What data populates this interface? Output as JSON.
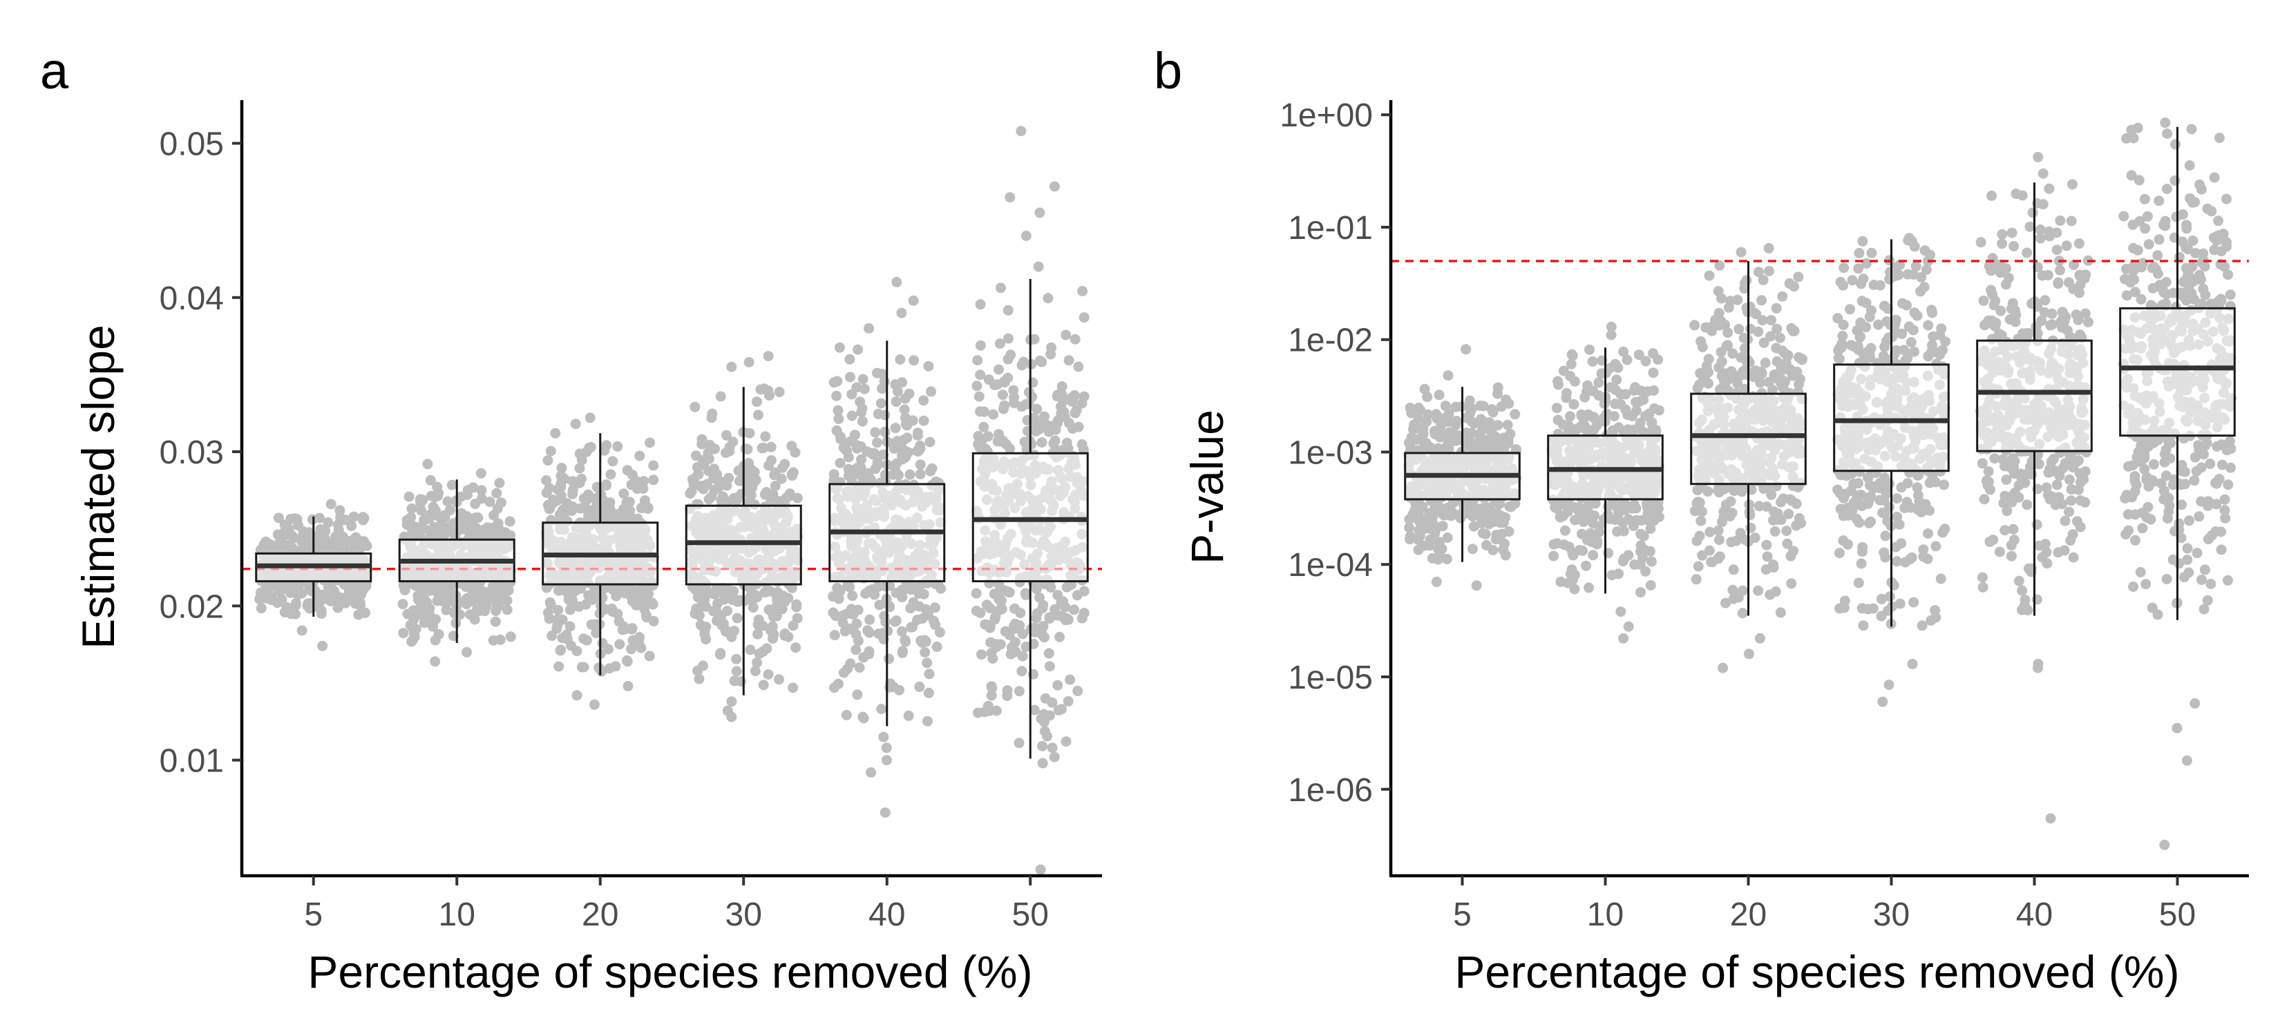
{
  "chart_data": [
    {
      "panel_label": "a",
      "type": "box",
      "categories": [
        "5",
        "10",
        "20",
        "30",
        "40",
        "50"
      ],
      "xlabel": "Percentage of species removed (%)",
      "ylabel": "Estimated slope",
      "yscale": "linear",
      "ylim": [
        0.0025,
        0.0528
      ],
      "yticks": [
        0.01,
        0.02,
        0.03,
        0.04,
        0.05
      ],
      "ytick_labels": [
        "0.01",
        "0.02",
        "0.03",
        "0.04",
        "0.05"
      ],
      "reference_line": 0.0224,
      "boxes": [
        {
          "q1": 0.0216,
          "median": 0.0226,
          "q3": 0.0234,
          "whisker_low": 0.0193,
          "whisker_high": 0.0258
        },
        {
          "q1": 0.0216,
          "median": 0.0229,
          "q3": 0.0243,
          "whisker_low": 0.0176,
          "whisker_high": 0.0282
        },
        {
          "q1": 0.0214,
          "median": 0.0233,
          "q3": 0.0254,
          "whisker_low": 0.0155,
          "whisker_high": 0.0312
        },
        {
          "q1": 0.0214,
          "median": 0.0241,
          "q3": 0.0265,
          "whisker_low": 0.0142,
          "whisker_high": 0.0342
        },
        {
          "q1": 0.0216,
          "median": 0.0248,
          "q3": 0.0279,
          "whisker_low": 0.0122,
          "whisker_high": 0.0372
        },
        {
          "q1": 0.0216,
          "median": 0.0256,
          "q3": 0.0299,
          "whisker_low": 0.0101,
          "whisker_high": 0.0412
        }
      ],
      "outliers": [
        [
          0.0174,
          0.0184,
          0.0266,
          0.0262
        ],
        [
          0.0164,
          0.017,
          0.0292,
          0.0286
        ],
        [
          0.0136,
          0.0142,
          0.0148,
          0.0322,
          0.0318
        ],
        [
          0.0128,
          0.0132,
          0.0138,
          0.0355,
          0.0362,
          0.0358
        ],
        [
          0.0066,
          0.0092,
          0.01,
          0.0108,
          0.0115,
          0.038,
          0.039,
          0.0398,
          0.041
        ],
        [
          0.0029,
          0.0098,
          0.0102,
          0.0108,
          0.042,
          0.044,
          0.0455,
          0.0465,
          0.0472,
          0.0508
        ]
      ],
      "point_color": "#bdbdbd",
      "reference_line_color": "#e31a1c"
    },
    {
      "panel_label": "b",
      "type": "box",
      "categories": [
        "5",
        "10",
        "20",
        "30",
        "40",
        "50"
      ],
      "xlabel": "Percentage of species removed (%)",
      "ylabel": "P-value",
      "yscale": "log10",
      "ylim": [
        1.7e-07,
        1.35
      ],
      "yticks": [
        1e-06,
        1e-05,
        0.0001,
        0.001,
        0.01,
        0.1,
        1
      ],
      "ytick_labels": [
        "1e-06",
        "1e-05",
        "1e-04",
        "1e-03",
        "1e-02",
        "1e-01",
        "1e+00"
      ],
      "reference_line": 0.05,
      "boxes": [
        {
          "q1": 0.00038,
          "median": 0.00062,
          "q3": 0.00098,
          "whisker_low": 0.000105,
          "whisker_high": 0.0038
        },
        {
          "q1": 0.00038,
          "median": 0.0007,
          "q3": 0.0014,
          "whisker_low": 5.5e-05,
          "whisker_high": 0.0085
        },
        {
          "q1": 0.00052,
          "median": 0.0014,
          "q3": 0.0033,
          "whisker_low": 3.5e-05,
          "whisker_high": 0.05
        },
        {
          "q1": 0.00068,
          "median": 0.0019,
          "q3": 0.006,
          "whisker_low": 2.8e-05,
          "whisker_high": 0.078
        },
        {
          "q1": 0.00102,
          "median": 0.0034,
          "q3": 0.0098,
          "whisker_low": 3.5e-05,
          "whisker_high": 0.25
        },
        {
          "q1": 0.0014,
          "median": 0.0056,
          "q3": 0.019,
          "whisker_low": 3.2e-05,
          "whisker_high": 0.78
        }
      ],
      "outliers": [
        [
          6.5e-05,
          7e-05,
          0.0048,
          0.0082
        ],
        [
          2.2e-05,
          2.8e-05,
          3.8e-05,
          0.011,
          0.013
        ],
        [
          1.2e-05,
          1.6e-05,
          2.2e-05,
          0.06,
          0.065
        ],
        [
          6e-06,
          8.5e-06,
          1.3e-05,
          0.075,
          0.08
        ],
        [
          5.5e-07,
          1.2e-05,
          1.3e-05,
          0.3,
          0.42
        ],
        [
          3.2e-07,
          1.8e-06,
          3.5e-06,
          5.8e-06,
          0.26,
          0.85
        ]
      ],
      "point_color": "#bdbdbd",
      "reference_line_color": "#e31a1c"
    }
  ]
}
